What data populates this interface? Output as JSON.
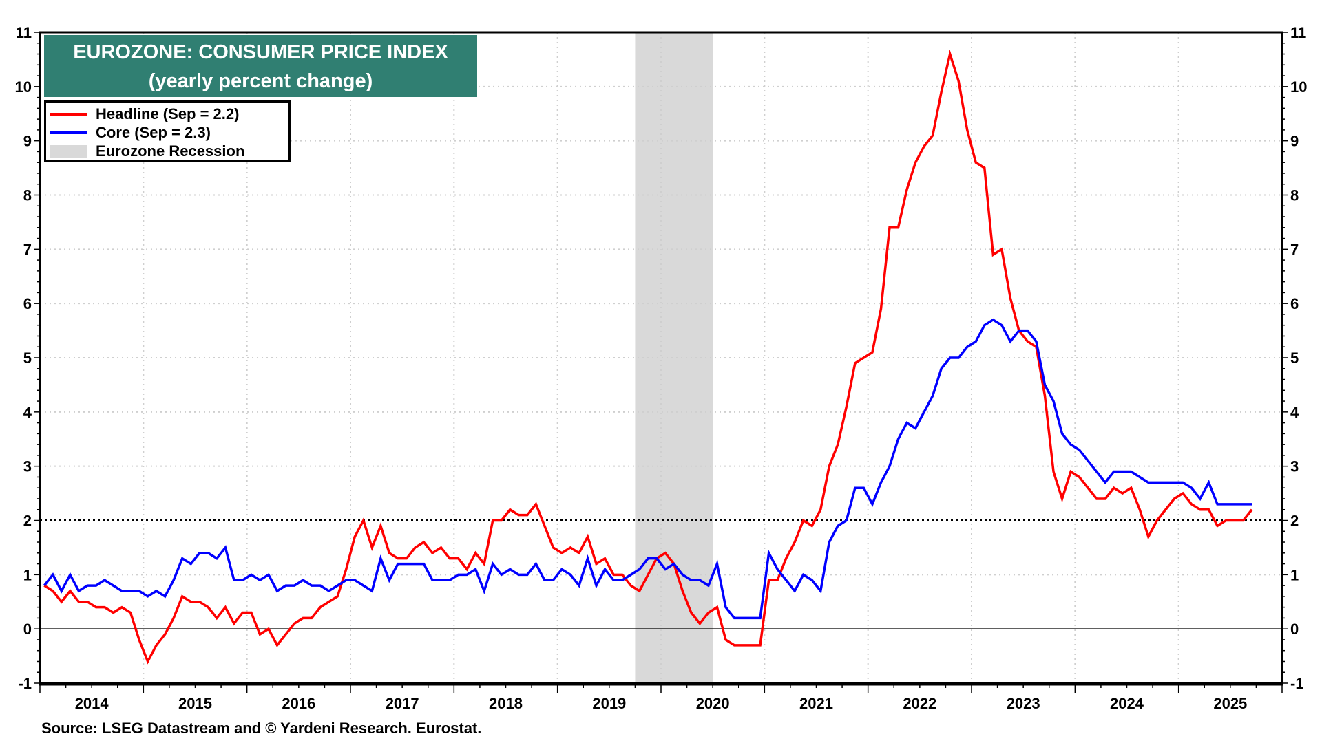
{
  "chart_data": {
    "type": "line",
    "title": "EUROZONE: CONSUMER PRICE INDEX",
    "subtitle": "(yearly percent change)",
    "ylim": [
      -1,
      11
    ],
    "y_ticks": [
      "-1",
      "0",
      "1",
      "2",
      "3",
      "4",
      "5",
      "6",
      "7",
      "8",
      "9",
      "10",
      "11"
    ],
    "x_ticks": [
      "2014",
      "2015",
      "2016",
      "2017",
      "2018",
      "2019",
      "2020",
      "2021",
      "2022",
      "2023",
      "2024",
      "2025"
    ],
    "xlim": [
      "2014-01",
      "2025-12"
    ],
    "grid": true,
    "reference_line": 2,
    "legend_placement": "top-left",
    "recession": {
      "name": "Eurozone Recession",
      "start": "2019-10",
      "end": "2020-06",
      "color": "#d9d9d9"
    },
    "series": [
      {
        "name": "Headline (Sep = 2.2)",
        "color": "#ff0000",
        "monthly_by_year": {
          "2014": [
            0.8,
            0.7,
            0.5,
            0.7,
            0.5,
            0.5,
            0.4,
            0.4,
            0.3,
            0.4,
            0.3,
            -0.2
          ],
          "2015": [
            -0.6,
            -0.3,
            -0.1,
            0.2,
            0.6,
            0.5,
            0.5,
            0.4,
            0.2,
            0.4,
            0.1,
            0.3
          ],
          "2016": [
            0.3,
            -0.1,
            0.0,
            -0.3,
            -0.1,
            0.1,
            0.2,
            0.2,
            0.4,
            0.5,
            0.6,
            1.1
          ],
          "2017": [
            1.7,
            2.0,
            1.5,
            1.9,
            1.4,
            1.3,
            1.3,
            1.5,
            1.6,
            1.4,
            1.5,
            1.3
          ],
          "2018": [
            1.3,
            1.1,
            1.4,
            1.2,
            2.0,
            2.0,
            2.2,
            2.1,
            2.1,
            2.3,
            1.9,
            1.5
          ],
          "2019": [
            1.4,
            1.5,
            1.4,
            1.7,
            1.2,
            1.3,
            1.0,
            1.0,
            0.8,
            0.7,
            1.0,
            1.3
          ],
          "2020": [
            1.4,
            1.2,
            0.7,
            0.3,
            0.1,
            0.3,
            0.4,
            -0.2,
            -0.3,
            -0.3,
            -0.3,
            -0.3
          ],
          "2021": [
            0.9,
            0.9,
            1.3,
            1.6,
            2.0,
            1.9,
            2.2,
            3.0,
            3.4,
            4.1,
            4.9,
            5.0
          ],
          "2022": [
            5.1,
            5.9,
            7.4,
            7.4,
            8.1,
            8.6,
            8.9,
            9.1,
            9.9,
            10.6,
            10.1,
            9.2
          ],
          "2023": [
            8.6,
            8.5,
            6.9,
            7.0,
            6.1,
            5.5,
            5.3,
            5.2,
            4.3,
            2.9,
            2.4,
            2.9
          ],
          "2024": [
            2.8,
            2.6,
            2.4,
            2.4,
            2.6,
            2.5,
            2.6,
            2.2,
            1.7,
            2.0,
            2.2,
            2.4
          ],
          "2025": [
            2.5,
            2.3,
            2.2,
            2.2,
            1.9,
            2.0,
            2.0,
            2.0,
            2.2
          ]
        }
      },
      {
        "name": "Core (Sep = 2.3)",
        "color": "#0000ff",
        "monthly_by_year": {
          "2014": [
            0.8,
            1.0,
            0.7,
            1.0,
            0.7,
            0.8,
            0.8,
            0.9,
            0.8,
            0.7,
            0.7,
            0.7
          ],
          "2015": [
            0.6,
            0.7,
            0.6,
            0.9,
            1.3,
            1.2,
            1.4,
            1.4,
            1.3,
            1.5,
            0.9,
            0.9
          ],
          "2016": [
            1.0,
            0.9,
            1.0,
            0.7,
            0.8,
            0.8,
            0.9,
            0.8,
            0.8,
            0.7,
            0.8,
            0.9
          ],
          "2017": [
            0.9,
            0.8,
            0.7,
            1.3,
            0.9,
            1.2,
            1.2,
            1.2,
            1.2,
            0.9,
            0.9,
            0.9
          ],
          "2018": [
            1.0,
            1.0,
            1.1,
            0.7,
            1.2,
            1.0,
            1.1,
            1.0,
            1.0,
            1.2,
            0.9,
            0.9
          ],
          "2019": [
            1.1,
            1.0,
            0.8,
            1.3,
            0.8,
            1.1,
            0.9,
            0.9,
            1.0,
            1.1,
            1.3,
            1.3
          ],
          "2020": [
            1.1,
            1.2,
            1.0,
            0.9,
            0.9,
            0.8,
            1.2,
            0.4,
            0.2,
            0.2,
            0.2,
            0.2
          ],
          "2021": [
            1.4,
            1.1,
            0.9,
            0.7,
            1.0,
            0.9,
            0.7,
            1.6,
            1.9,
            2.0,
            2.6,
            2.6
          ],
          "2022": [
            2.3,
            2.7,
            3.0,
            3.5,
            3.8,
            3.7,
            4.0,
            4.3,
            4.8,
            5.0,
            5.0,
            5.2
          ],
          "2023": [
            5.3,
            5.6,
            5.7,
            5.6,
            5.3,
            5.5,
            5.5,
            5.3,
            4.5,
            4.2,
            3.6,
            3.4
          ],
          "2024": [
            3.3,
            3.1,
            2.9,
            2.7,
            2.9,
            2.9,
            2.9,
            2.8,
            2.7,
            2.7,
            2.7,
            2.7
          ],
          "2025": [
            2.7,
            2.6,
            2.4,
            2.7,
            2.3,
            2.3,
            2.3,
            2.3,
            2.3
          ]
        }
      }
    ],
    "source": "Source: LSEG Datastream and © Yardeni Research. Eurostat."
  }
}
